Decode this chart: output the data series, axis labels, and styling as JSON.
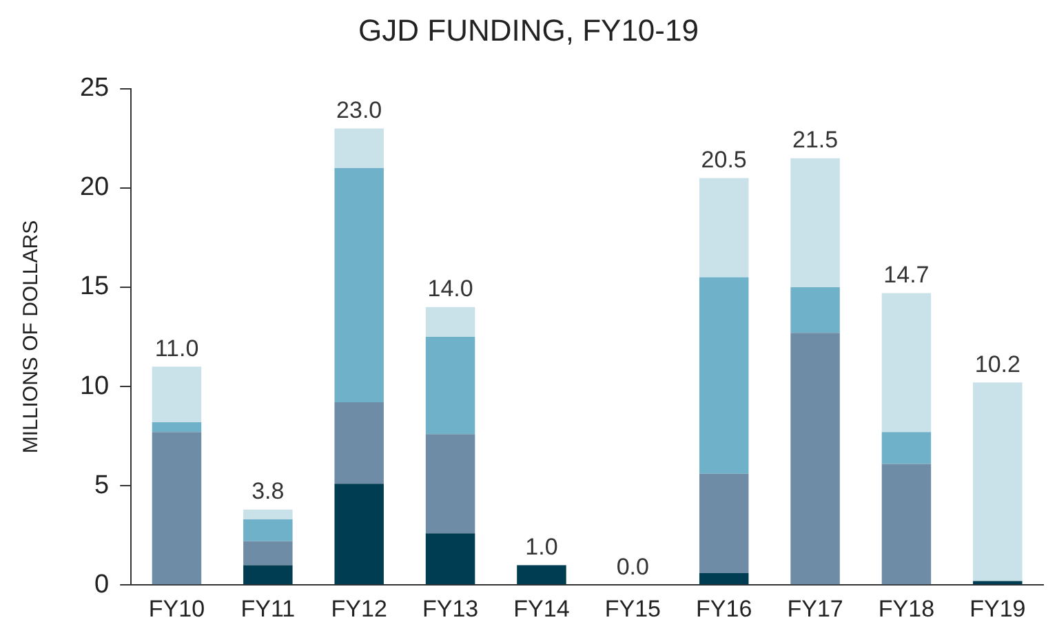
{
  "chart_data": {
    "type": "bar",
    "title": "GJD FUNDING, FY10-19",
    "ylabel": "MILLIONS OF DOLLARS",
    "categories": [
      "FY10",
      "FY11",
      "FY12",
      "FY13",
      "FY14",
      "FY15",
      "FY16",
      "FY17",
      "FY18",
      "FY19"
    ],
    "stacked": true,
    "series": [
      {
        "color": "#003d52",
        "values": [
          0,
          1.0,
          5.1,
          2.6,
          1.0,
          0,
          0.6,
          0,
          0,
          0.2
        ]
      },
      {
        "color": "#6e8ca6",
        "values": [
          7.7,
          1.2,
          4.1,
          5.0,
          0,
          0,
          5.0,
          12.7,
          6.1,
          0
        ]
      },
      {
        "color": "#6fb1c8",
        "values": [
          0.5,
          1.1,
          11.8,
          4.9,
          0,
          0,
          9.9,
          2.3,
          1.6,
          0
        ]
      },
      {
        "color": "#c9e1e8",
        "values": [
          2.8,
          0.5,
          2.0,
          1.5,
          0,
          0,
          5.0,
          6.5,
          7.0,
          10.0
        ]
      }
    ],
    "totals": [
      "11.0",
      "3.8",
      "23.0",
      "14.0",
      "1.0",
      "0.0",
      "20.5",
      "21.5",
      "14.7",
      "10.2"
    ],
    "ylim": [
      0,
      25
    ],
    "yticks": [
      0,
      5,
      10,
      15,
      20,
      25
    ],
    "grid": false,
    "legend": false
  }
}
